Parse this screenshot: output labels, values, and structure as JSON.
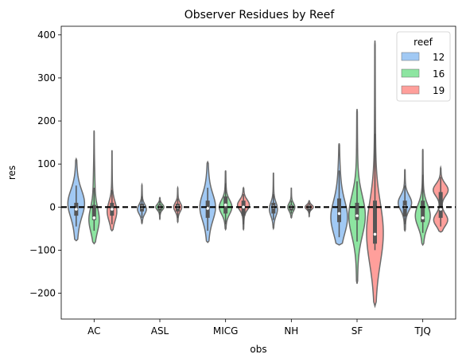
{
  "chart_data": {
    "type": "violin",
    "title": "Observer Residues by Reef",
    "xlabel": "obs",
    "ylabel": "res",
    "categories": [
      "AC",
      "ASL",
      "MICG",
      "NH",
      "SF",
      "TJQ"
    ],
    "ylim": [
      -260,
      420
    ],
    "yticks": [
      -200,
      -100,
      0,
      100,
      200,
      300,
      400
    ],
    "ytick_labels": [
      "−200",
      "−100",
      "0",
      "100",
      "200",
      "300",
      "400"
    ],
    "reference_line": {
      "y": 0,
      "style": "dashed"
    },
    "legend": {
      "title": "reef",
      "position": "top-right"
    },
    "series": [
      {
        "name": "12",
        "color": "#a1c9f4",
        "violins": [
          {
            "min": -78,
            "max": 112,
            "q1": -20,
            "median": -5,
            "q3": 10,
            "wlo": -45,
            "whi": 50,
            "peak": 10,
            "bulge": 80,
            "shape": "spread"
          },
          {
            "min": -38,
            "max": 52,
            "q1": -10,
            "median": 0,
            "q3": 8,
            "wlo": -25,
            "whi": 25,
            "peak": -5,
            "bulge": 20,
            "shape": "normal"
          },
          {
            "min": -82,
            "max": 105,
            "q1": -25,
            "median": -3,
            "q3": 15,
            "wlo": -55,
            "whi": 45,
            "peak": 0,
            "bulge": 65,
            "shape": "spread"
          },
          {
            "min": -50,
            "max": 80,
            "q1": -15,
            "median": 0,
            "q3": 10,
            "wlo": -30,
            "whi": 30,
            "peak": -5,
            "bulge": 15,
            "shape": "normal"
          },
          {
            "min": -88,
            "max": 148,
            "q1": -35,
            "median": -15,
            "q3": 20,
            "wlo": -70,
            "whi": 85,
            "peak": -25,
            "bulge": 90,
            "shape": "spread"
          },
          {
            "min": -55,
            "max": 88,
            "q1": -22,
            "median": 0,
            "q3": 15,
            "wlo": -40,
            "whi": 50,
            "peak": 10,
            "bulge": 50,
            "shape": "normal"
          }
        ]
      },
      {
        "name": "16",
        "color": "#8de5a1",
        "violins": [
          {
            "min": -85,
            "max": 178,
            "q1": -30,
            "median": -25,
            "q3": 5,
            "wlo": -55,
            "whi": 45,
            "peak": -30,
            "bulge": 30,
            "shape": "bottom"
          },
          {
            "min": -28,
            "max": 22,
            "q1": -8,
            "median": 0,
            "q3": 6,
            "wlo": -18,
            "whi": 15,
            "peak": 0,
            "bulge": 15,
            "shape": "normal"
          },
          {
            "min": -52,
            "max": 85,
            "q1": -15,
            "median": 5,
            "q3": 25,
            "wlo": -40,
            "whi": 55,
            "peak": 0,
            "bulge": 45,
            "shape": "normal"
          },
          {
            "min": -25,
            "max": 45,
            "q1": -8,
            "median": 0,
            "q3": 5,
            "wlo": -15,
            "whi": 15,
            "peak": 0,
            "bulge": 8,
            "shape": "normal"
          },
          {
            "min": -178,
            "max": 228,
            "q1": -30,
            "median": -20,
            "q3": 10,
            "wlo": -80,
            "whi": 60,
            "peak": -20,
            "bulge": 70,
            "shape": "normal"
          },
          {
            "min": -88,
            "max": 135,
            "q1": -35,
            "median": -25,
            "q3": 15,
            "wlo": -60,
            "whi": 75,
            "peak": -20,
            "bulge": 60,
            "shape": "normal"
          }
        ]
      },
      {
        "name": "19",
        "color": "#ff9f9b",
        "violins": [
          {
            "min": -55,
            "max": 132,
            "q1": -20,
            "median": -5,
            "q3": 10,
            "wlo": -40,
            "whi": 40,
            "peak": -10,
            "bulge": 25,
            "shape": "normal"
          },
          {
            "min": -35,
            "max": 45,
            "q1": -10,
            "median": 0,
            "q3": 8,
            "wlo": -25,
            "whi": 20,
            "peak": 0,
            "bulge": 15,
            "shape": "normal"
          },
          {
            "min": -52,
            "max": 45,
            "q1": -20,
            "median": 0,
            "q3": 15,
            "wlo": -40,
            "whi": 30,
            "peak": 5,
            "bulge": 40,
            "shape": "normal"
          },
          {
            "min": -22,
            "max": 15,
            "q1": -8,
            "median": 0,
            "q3": 5,
            "wlo": -15,
            "whi": 10,
            "peak": 0,
            "bulge": 15,
            "shape": "normal"
          },
          {
            "min": -230,
            "max": 387,
            "q1": -85,
            "median": -63,
            "q3": 15,
            "wlo": -100,
            "whi": 170,
            "peak": -60,
            "bulge": 115,
            "shape": "normal"
          },
          {
            "min": -58,
            "max": 92,
            "q1": -25,
            "median": -5,
            "q3": 35,
            "wlo": -45,
            "whi": 70,
            "peak": 0,
            "bulge": 60,
            "shape": "bimodal"
          }
        ]
      }
    ]
  }
}
